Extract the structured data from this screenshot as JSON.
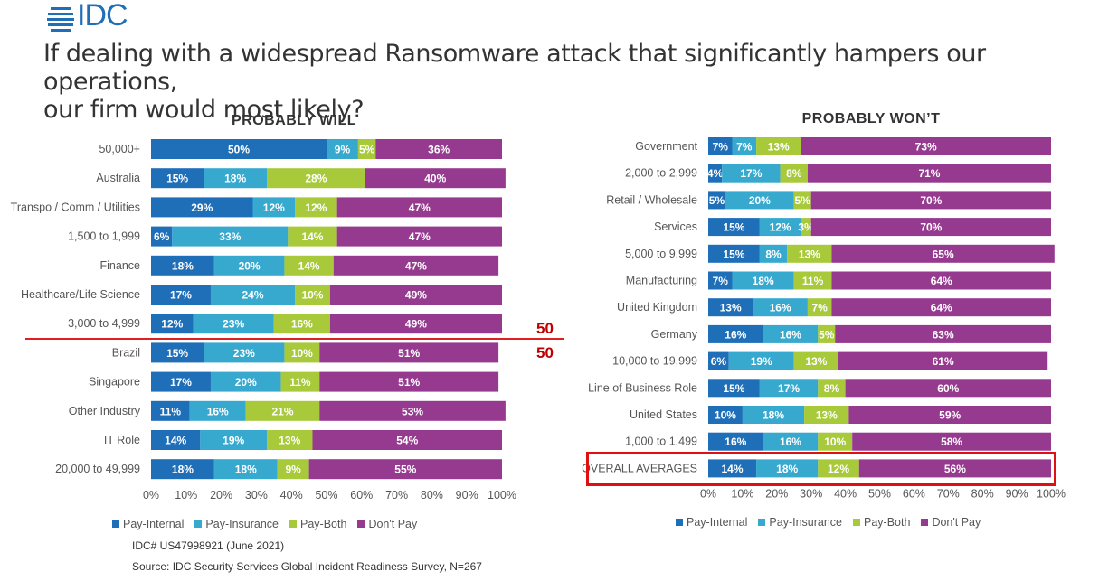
{
  "header": {
    "logo_text": "IDC",
    "title_line1": "If dealing with a widespread Ransomware attack that significantly hampers our operations,",
    "title_line2": "our firm would most likely?"
  },
  "colors": {
    "Pay-Internal": "#1f6eb8",
    "Pay-Insurance": "#37a9cf",
    "Pay-Both": "#a7c93a",
    "Don't Pay": "#953a8f"
  },
  "legend": [
    "Pay-Internal",
    "Pay-Insurance",
    "Pay-Both",
    "Don't Pay"
  ],
  "annotations": {
    "mark_above": "50",
    "mark_below": "50"
  },
  "notes": {
    "idc_number": "IDC# US47998921  (June 2021)",
    "source": "Source:  IDC Security Services Global Incident Readiness Survey, N=267"
  },
  "chart_data": [
    {
      "type": "bar",
      "orientation": "horizontal",
      "stacked": true,
      "title": "PROBABLY WILL",
      "categories": [
        "50,000+",
        "Australia",
        "Transpo / Comm / Utilities",
        "1,500 to 1,999",
        "Finance",
        "Healthcare/Life Science",
        "3,000 to 4,999",
        "Brazil",
        "Singapore",
        "Other Industry",
        "IT Role",
        "20,000 to 49,999"
      ],
      "series": [
        {
          "name": "Pay-Internal",
          "values": [
            50,
            15,
            29,
            6,
            18,
            17,
            12,
            15,
            17,
            11,
            14,
            18
          ]
        },
        {
          "name": "Pay-Insurance",
          "values": [
            9,
            18,
            12,
            33,
            20,
            24,
            23,
            23,
            20,
            16,
            19,
            18
          ]
        },
        {
          "name": "Pay-Both",
          "values": [
            5,
            28,
            12,
            14,
            14,
            10,
            16,
            10,
            11,
            21,
            13,
            9
          ]
        },
        {
          "name": "Don't Pay",
          "values": [
            36,
            40,
            47,
            47,
            47,
            49,
            49,
            51,
            51,
            53,
            54,
            55
          ]
        }
      ],
      "xlim": [
        0,
        100
      ],
      "xticks": [
        "0%",
        "10%",
        "20%",
        "30%",
        "40%",
        "50%",
        "60%",
        "70%",
        "80%",
        "90%",
        "100%"
      ],
      "grid": false,
      "legend_position": "bottom"
    },
    {
      "type": "bar",
      "orientation": "horizontal",
      "stacked": true,
      "title": "PROBABLY WON’T",
      "categories": [
        "Government",
        "2,000 to 2,999",
        "Retail / Wholesale",
        "Services",
        "5,000 to 9,999",
        "Manufacturing",
        "United Kingdom",
        "Germany",
        "10,000 to 19,999",
        "Line of Business Role",
        "United States",
        "1,000 to 1,499",
        "OVERALL AVERAGES"
      ],
      "series": [
        {
          "name": "Pay-Internal",
          "values": [
            7,
            4,
            5,
            15,
            15,
            7,
            13,
            16,
            6,
            15,
            10,
            16,
            14
          ]
        },
        {
          "name": "Pay-Insurance",
          "values": [
            7,
            17,
            20,
            12,
            8,
            18,
            16,
            16,
            19,
            17,
            18,
            16,
            18
          ]
        },
        {
          "name": "Pay-Both",
          "values": [
            13,
            8,
            5,
            3,
            13,
            11,
            7,
            5,
            13,
            8,
            13,
            10,
            12
          ]
        },
        {
          "name": "Don't Pay",
          "values": [
            73,
            71,
            70,
            70,
            65,
            64,
            64,
            63,
            61,
            60,
            59,
            58,
            56
          ]
        }
      ],
      "xlim": [
        0,
        100
      ],
      "xticks": [
        "0%",
        "10%",
        "20%",
        "30%",
        "40%",
        "50%",
        "60%",
        "70%",
        "80%",
        "90%",
        "100%"
      ],
      "grid": false,
      "legend_position": "bottom"
    }
  ]
}
